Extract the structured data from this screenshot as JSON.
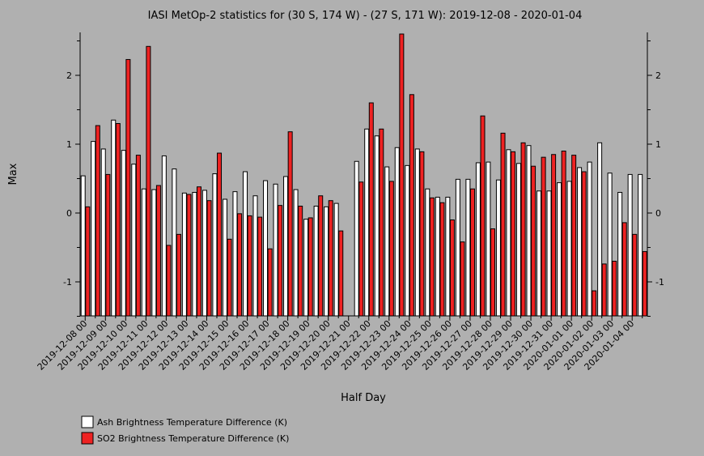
{
  "chart_data": {
    "type": "bar",
    "title": "IASI MetOp-2 statistics for (30 S, 174 W) - (27 S, 171 W): 2019-12-08 - 2020-01-04",
    "xlabel": "Half Day",
    "ylabel": "Max",
    "ylim": [
      -1.5,
      2.6
    ],
    "yticks": [
      "2",
      "1",
      "0",
      "-1"
    ],
    "ytick_values": [
      2,
      1,
      0,
      -1
    ],
    "categories": [
      "2019-12-08 00",
      "2019-12-08 12",
      "2019-12-09 00",
      "2019-12-09 12",
      "2019-12-10 00",
      "2019-12-10 12",
      "2019-12-11 00",
      "2019-12-11 12",
      "2019-12-12 00",
      "2019-12-12 12",
      "2019-12-13 00",
      "2019-12-13 12",
      "2019-12-14 00",
      "2019-12-14 12",
      "2019-12-15 00",
      "2019-12-15 12",
      "2019-12-16 00",
      "2019-12-16 12",
      "2019-12-17 00",
      "2019-12-17 12",
      "2019-12-18 00",
      "2019-12-18 12",
      "2019-12-19 00",
      "2019-12-19 12",
      "2019-12-20 00",
      "2019-12-20 12",
      "2019-12-21 00",
      "2019-12-21 12",
      "2019-12-22 00",
      "2019-12-22 12",
      "2019-12-23 00",
      "2019-12-23 12",
      "2019-12-24 00",
      "2019-12-24 12",
      "2019-12-25 00",
      "2019-12-25 12",
      "2019-12-26 00",
      "2019-12-26 12",
      "2019-12-27 00",
      "2019-12-27 12",
      "2019-12-28 00",
      "2019-12-28 12",
      "2019-12-29 00",
      "2019-12-29 12",
      "2019-12-30 00",
      "2019-12-30 12",
      "2019-12-31 00",
      "2019-12-31 12",
      "2020-01-01 00",
      "2020-01-01 12",
      "2020-01-02 00",
      "2020-01-02 12",
      "2020-01-03 00",
      "2020-01-03 12",
      "2020-01-04 00",
      "2020-01-04 12"
    ],
    "tick_labels": [
      "2019-12-08 00",
      "2019-12-09 00",
      "2019-12-10 00",
      "2019-12-11 00",
      "2019-12-12 00",
      "2019-12-13 00",
      "2019-12-14 00",
      "2019-12-15 00",
      "2019-12-16 00",
      "2019-12-17 00",
      "2019-12-18 00",
      "2019-12-19 00",
      "2019-12-20 00",
      "2019-12-21 00",
      "2019-12-22 00",
      "2019-12-23 00",
      "2019-12-24 00",
      "2019-12-25 00",
      "2019-12-26 00",
      "2019-12-27 00",
      "2019-12-28 00",
      "2019-12-29 00",
      "2019-12-30 00",
      "2019-12-31 00",
      "2020-01-01 00",
      "2020-01-02 00",
      "2020-01-03 00",
      "2020-01-04 00"
    ],
    "series": [
      {
        "name": "Ash Brightness Temperature Difference (K)",
        "color": "#ffffff",
        "values": [
          0.54,
          1.04,
          0.93,
          1.35,
          0.91,
          0.71,
          0.35,
          0.34,
          0.83,
          0.64,
          0.29,
          0.3,
          0.33,
          0.57,
          0.2,
          0.31,
          0.6,
          0.25,
          0.47,
          0.42,
          0.53,
          0.34,
          -0.09,
          0.1,
          0.09,
          0.14,
          null,
          0.75,
          1.22,
          1.12,
          0.67,
          0.95,
          0.69,
          0.93,
          0.35,
          0.23,
          0.23,
          0.49,
          0.49,
          0.73,
          0.74,
          0.48,
          0.92,
          0.72,
          0.98,
          0.32,
          0.32,
          0.44,
          0.46,
          0.66,
          0.74,
          1.02,
          0.58,
          0.3,
          0.56,
          0.56
        ]
      },
      {
        "name": "SO2 Brightness Temperature Difference (K)",
        "color": "#ee2222",
        "values": [
          0.09,
          1.27,
          0.56,
          1.3,
          2.23,
          0.84,
          2.42,
          0.4,
          -0.47,
          -0.31,
          0.27,
          0.38,
          0.18,
          0.87,
          -0.38,
          -0.01,
          -0.04,
          -0.06,
          -0.52,
          0.11,
          1.18,
          0.1,
          -0.07,
          0.25,
          0.18,
          -0.26,
          null,
          0.45,
          1.6,
          1.22,
          0.46,
          2.6,
          1.72,
          0.89,
          0.22,
          0.15,
          -0.1,
          -0.42,
          0.35,
          1.41,
          -0.23,
          1.16,
          0.89,
          1.02,
          0.68,
          0.81,
          0.85,
          0.9,
          0.84,
          0.6,
          -1.13,
          -0.74,
          -0.7,
          -0.14,
          -0.31,
          -0.56
        ]
      }
    ],
    "legend": {
      "position": "bottom-left"
    },
    "grid": false
  }
}
